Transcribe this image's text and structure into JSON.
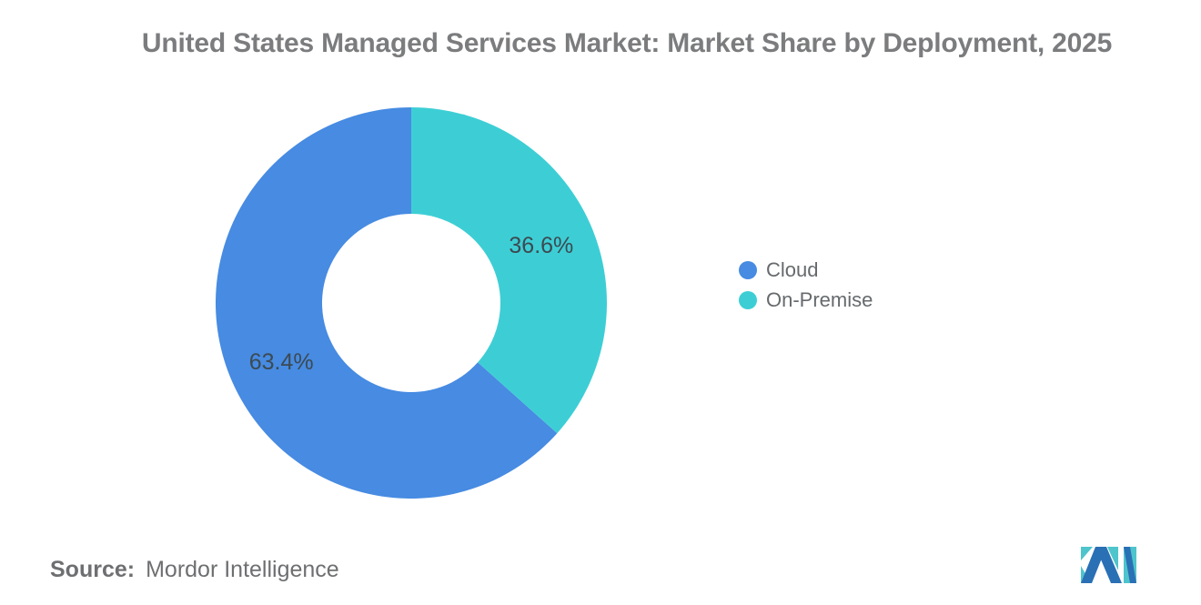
{
  "title": "United States Managed Services Market: Market Share by Deployment, 2025",
  "chart_data": {
    "type": "pie",
    "subtype": "donut",
    "title": "United States Managed Services Market: Market Share by Deployment, 2025",
    "slices": [
      {
        "label": "Cloud",
        "value": 63.4,
        "display": "63.4%",
        "color": "#478BE2"
      },
      {
        "label": "On-Premise",
        "value": 36.6,
        "display": "36.6%",
        "color": "#3DCED5"
      }
    ],
    "start_angle_deg": 0,
    "direction": "first-slice-counterclockwise-from-top",
    "inner_radius_ratio": 0.456,
    "legend_position": "right",
    "label_color": "#3C4A52",
    "background": "#FFFFFF"
  },
  "source": {
    "label": "Source:",
    "value": "Mordor Intelligence"
  },
  "branding": {
    "logo_name": "mordor-intelligence-logo",
    "logo_blue": "#2A70B5",
    "logo_teal": "#4EC4CC"
  }
}
